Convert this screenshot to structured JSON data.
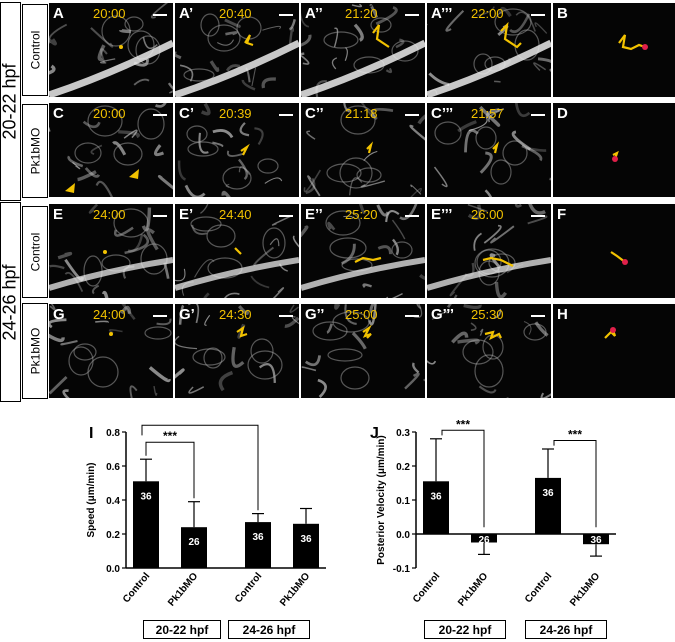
{
  "groups": [
    {
      "label": "20-22 hpf",
      "rows": [
        "Control",
        "Pk1bMO"
      ]
    },
    {
      "label": "24-26 hpf",
      "rows": [
        "Control",
        "Pk1bMO"
      ]
    }
  ],
  "panels": [
    [
      {
        "label": "A",
        "time": "20:00"
      },
      {
        "label": "A’",
        "time": "20:40"
      },
      {
        "label": "A’’",
        "time": "21:20"
      },
      {
        "label": "A’’’",
        "time": "22:00"
      },
      {
        "label": "B",
        "time": ""
      }
    ],
    [
      {
        "label": "C",
        "time": "20:00"
      },
      {
        "label": "C’",
        "time": "20:39"
      },
      {
        "label": "C’’",
        "time": "21:18"
      },
      {
        "label": "C’’’",
        "time": "21:57"
      },
      {
        "label": "D",
        "time": ""
      }
    ],
    [
      {
        "label": "E",
        "time": "24:00"
      },
      {
        "label": "E’",
        "time": "24:40"
      },
      {
        "label": "E’’",
        "time": "25:20"
      },
      {
        "label": "E’’’",
        "time": "26:00"
      },
      {
        "label": "F",
        "time": ""
      }
    ],
    [
      {
        "label": "G",
        "time": "24:00"
      },
      {
        "label": "G’",
        "time": "24:30"
      },
      {
        "label": "G’’",
        "time": "25:00"
      },
      {
        "label": "G’’’",
        "time": "25:30"
      },
      {
        "label": "H",
        "time": ""
      }
    ]
  ],
  "colors": {
    "time": "#f2c200",
    "track": "#f2c200",
    "endpoint": "#e0204a",
    "bar": "#000000"
  },
  "chart_data": [
    {
      "panel_label": "I",
      "type": "bar",
      "ylabel": "Speed (μm/min)",
      "ylim": [
        0.0,
        0.8
      ],
      "yticks": [
        "0.0",
        "0.2",
        "0.4",
        "0.6",
        "0.8"
      ],
      "categories": [
        "Control",
        "Pk1bMO",
        "Control",
        "Pk1bMO"
      ],
      "values": [
        0.51,
        0.24,
        0.27,
        0.26
      ],
      "error": [
        0.13,
        0.15,
        0.05,
        0.09
      ],
      "n": [
        "36",
        "26",
        "36",
        "36"
      ],
      "groups": [
        "20-22 hpf",
        "24-26 hpf"
      ],
      "significance": [
        "***",
        "***"
      ]
    },
    {
      "panel_label": "J",
      "type": "bar",
      "ylabel": "Posterior Velocity (μm/min)",
      "ylim": [
        -0.1,
        0.3
      ],
      "yticks": [
        "-0.1",
        "0.0",
        "0.1",
        "0.2",
        "0.3"
      ],
      "categories": [
        "Control",
        "Pk1bMO",
        "Control",
        "Pk1bMO"
      ],
      "values": [
        0.155,
        -0.025,
        0.165,
        -0.03
      ],
      "error": [
        0.125,
        0.035,
        0.085,
        0.035
      ],
      "n": [
        "36",
        "26",
        "36",
        "36"
      ],
      "groups": [
        "20-22 hpf",
        "24-26 hpf"
      ],
      "significance": [
        "***",
        "***"
      ]
    }
  ]
}
